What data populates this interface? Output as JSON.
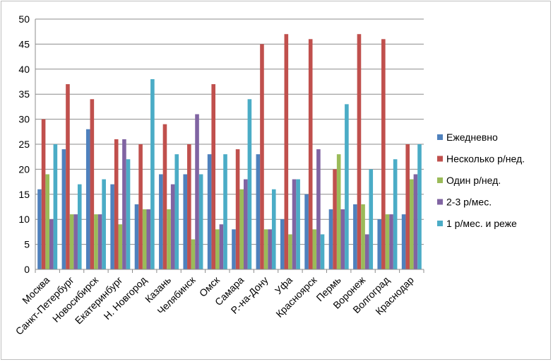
{
  "chart_data": {
    "type": "bar",
    "title": "",
    "xlabel": "",
    "ylabel": "",
    "ylim": [
      0,
      50
    ],
    "yticks": [
      0,
      5,
      10,
      15,
      20,
      25,
      30,
      35,
      40,
      45,
      50
    ],
    "grid": true,
    "legend_position": "right",
    "categories": [
      "Москва",
      "Санкт-Петербург",
      "Новосибирск",
      "Екатеринбург",
      "Н. Новгород",
      "Казань",
      "Челябинск",
      "Омск",
      "Самара",
      "Р.-на-Дону",
      "Уфа",
      "Красноярск",
      "Пермь",
      "Воронеж",
      "Волгоград",
      "Краснодар"
    ],
    "series": [
      {
        "name": "Ежедневно",
        "color": "#4f81bd",
        "values": [
          16,
          24,
          28,
          17,
          13,
          19,
          19,
          23,
          8,
          23,
          10,
          15,
          12,
          13,
          10,
          11
        ]
      },
      {
        "name": "Несколько р/нед.",
        "color": "#c0504d",
        "values": [
          30,
          37,
          34,
          26,
          25,
          29,
          25,
          37,
          24,
          45,
          47,
          46,
          20,
          47,
          46,
          25
        ]
      },
      {
        "name": "Один р/нед.",
        "color": "#9bbb59",
        "values": [
          19,
          11,
          11,
          9,
          12,
          12,
          6,
          8,
          16,
          8,
          7,
          8,
          23,
          13,
          11,
          18
        ]
      },
      {
        "name": "2-3 р/мес.",
        "color": "#8064a2",
        "values": [
          10,
          11,
          11,
          26,
          12,
          17,
          31,
          9,
          18,
          8,
          18,
          24,
          12,
          7,
          11,
          19
        ]
      },
      {
        "name": "1 р/мес. и реже",
        "color": "#4bacc6",
        "values": [
          25,
          17,
          18,
          22,
          38,
          23,
          19,
          23,
          34,
          16,
          18,
          7,
          33,
          20,
          22,
          25
        ]
      }
    ]
  }
}
